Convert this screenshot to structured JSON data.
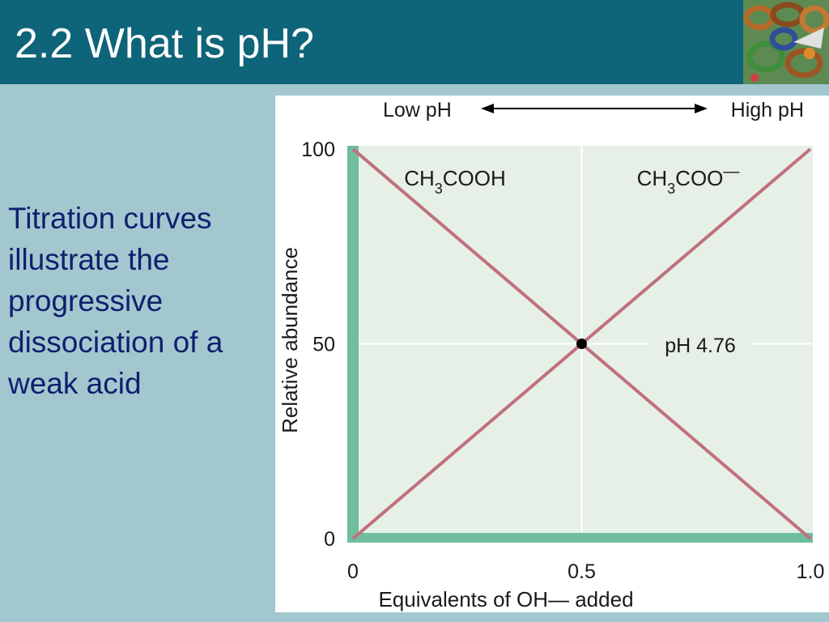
{
  "slide": {
    "title": "2.2  What is pH?",
    "body": "Titration curves illustrate the progressive dissociation of a weak acid"
  },
  "colors": {
    "title_bar": "#0e6479",
    "background": "#a3c7cf",
    "plot_fill": "#e6f0e6",
    "axis_bar": "#6fbe9c",
    "curve": "#c0707e",
    "body_text": "#0f1f6e"
  },
  "icons": {
    "logo": "protein-structure-icon"
  },
  "chart_data": {
    "type": "line",
    "xlabel": "Equivalents of OH— added",
    "ylabel": "Relative abundance",
    "xlim": [
      0,
      1.0
    ],
    "ylim": [
      0,
      100
    ],
    "x_ticks": [
      "0",
      "0.5",
      "1.0"
    ],
    "y_ticks": [
      "100",
      "50",
      "0"
    ],
    "grid": true,
    "top_arrow": {
      "left": "Low pH",
      "right": "High pH"
    },
    "series": [
      {
        "name": "CH3COOH",
        "x": [
          0,
          1.0
        ],
        "y": [
          100,
          0
        ]
      },
      {
        "name": "CH3COO—",
        "x": [
          0,
          1.0
        ],
        "y": [
          0,
          100
        ]
      }
    ],
    "annotations": {
      "midpoint": {
        "x": 0.5,
        "y": 50,
        "label": "pH 4.76"
      }
    }
  }
}
